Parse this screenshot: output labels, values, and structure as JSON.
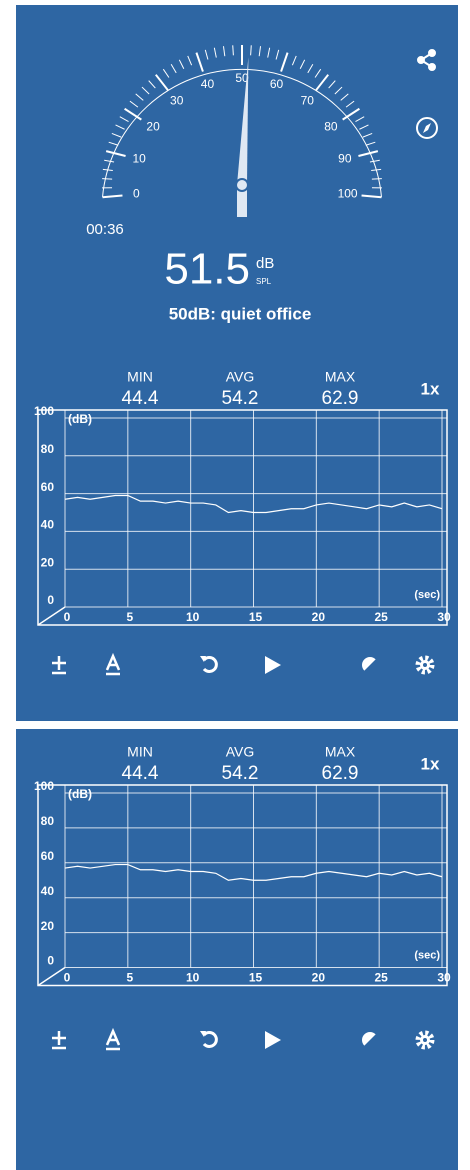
{
  "meter": {
    "gauge": {
      "labels": [
        0,
        10,
        20,
        30,
        40,
        50,
        60,
        70,
        80,
        90,
        100
      ],
      "min": 0,
      "max": 100,
      "value": 51.5
    },
    "time": "00:36",
    "reading": "51.5",
    "unit": "dB",
    "unit_sub": "SPL",
    "description": "50dB: quiet office"
  },
  "panels": [
    {
      "stats": [
        {
          "label": "MIN",
          "value": 44.4
        },
        {
          "label": "AVG",
          "value": 54.2
        },
        {
          "label": "MAX",
          "value": 62.9
        }
      ],
      "speed": "1x",
      "graph": {
        "type": "line",
        "y_unit": "(dB)",
        "x_unit": "(sec)",
        "xlim": [
          0,
          30
        ],
        "ylim": [
          0,
          100
        ],
        "xticks": [
          0,
          5,
          10,
          15,
          20,
          25,
          30
        ],
        "yticks": [
          0,
          20,
          40,
          60,
          80,
          100
        ],
        "x": [
          0,
          1,
          2,
          3,
          4,
          5,
          6,
          7,
          8,
          9,
          10,
          11,
          12,
          13,
          14,
          15,
          16,
          17,
          18,
          19,
          20,
          21,
          22,
          23,
          24,
          25,
          26,
          27,
          28,
          29,
          30
        ],
        "values": [
          57,
          58,
          57,
          58,
          59,
          59,
          56,
          56,
          55,
          56,
          55,
          55,
          54,
          50,
          51,
          50,
          50,
          51,
          52,
          52,
          54,
          55,
          54,
          53,
          52,
          54,
          53,
          55,
          53,
          54,
          52
        ]
      }
    },
    {
      "stats": [
        {
          "label": "MIN",
          "value": 44.4
        },
        {
          "label": "AVG",
          "value": 54.2
        },
        {
          "label": "MAX",
          "value": 62.9
        }
      ],
      "speed": "1x",
      "graph": {
        "type": "line",
        "y_unit": "(dB)",
        "x_unit": "(sec)",
        "xlim": [
          0,
          30
        ],
        "ylim": [
          0,
          100
        ],
        "xticks": [
          0,
          5,
          10,
          15,
          20,
          25,
          30
        ],
        "yticks": [
          0,
          20,
          40,
          60,
          80,
          100
        ],
        "x": [
          0,
          1,
          2,
          3,
          4,
          5,
          6,
          7,
          8,
          9,
          10,
          11,
          12,
          13,
          14,
          15,
          16,
          17,
          18,
          19,
          20,
          21,
          22,
          23,
          24,
          25,
          26,
          27,
          28,
          29,
          30
        ],
        "values": [
          57,
          58,
          57,
          58,
          59,
          59,
          56,
          56,
          55,
          56,
          55,
          55,
          54,
          50,
          51,
          50,
          50,
          51,
          52,
          52,
          54,
          55,
          54,
          53,
          52,
          54,
          53,
          55,
          53,
          54,
          52
        ]
      }
    }
  ]
}
